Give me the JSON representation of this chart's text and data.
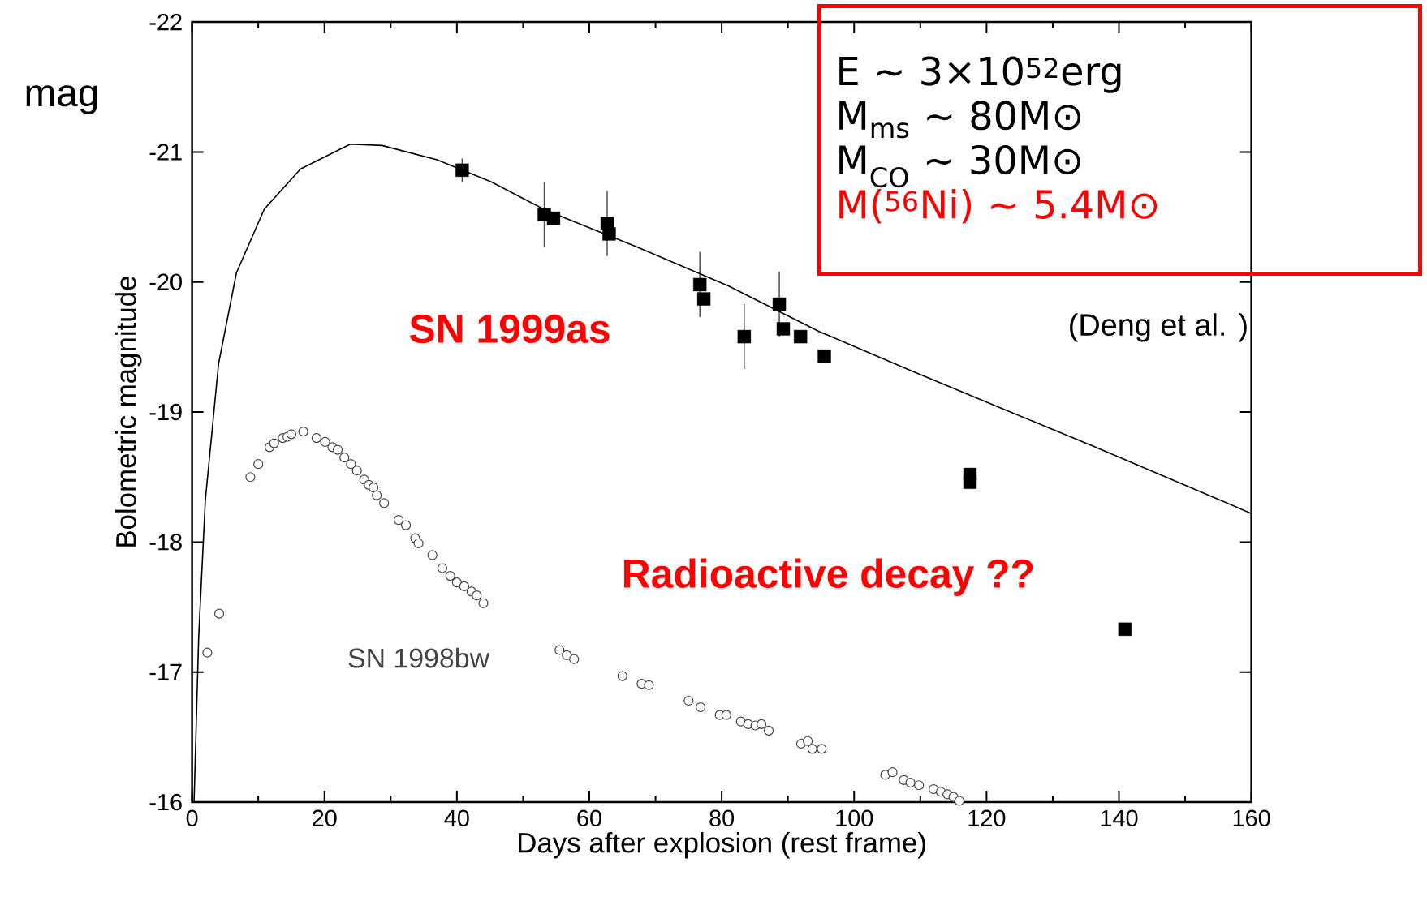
{
  "chart_data": {
    "type": "scatter",
    "xlabel": "Days after explosion (rest frame)",
    "ylabel": "Bolometric magnitude",
    "xlim": [
      0,
      160
    ],
    "xticks": [
      0,
      20,
      40,
      60,
      80,
      100,
      120,
      140,
      160
    ],
    "ylim": [
      -16,
      -22
    ],
    "yticks": [
      -22,
      -21,
      -20,
      -19,
      -18,
      -17,
      -16
    ],
    "series": [
      {
        "name": "SN 1999as",
        "marker": "square",
        "color": "#000000",
        "x": [
          40.8,
          53.2,
          54.6,
          62.7,
          63.0,
          76.7,
          77.3,
          83.4,
          88.7,
          89.3,
          91.9,
          95.5,
          117.5,
          117.5,
          140.9
        ],
        "values": [
          -20.86,
          -20.52,
          -20.49,
          -20.45,
          -20.37,
          -19.98,
          -19.87,
          -19.58,
          -19.83,
          -19.64,
          -19.58,
          -19.43,
          -18.52,
          -18.46,
          -17.33
        ],
        "errors": [
          0.09,
          0.25,
          null,
          0.25,
          null,
          0.25,
          null,
          0.25,
          0.25,
          null,
          null,
          null,
          null,
          null,
          null
        ]
      },
      {
        "name": "SN 1998bw",
        "marker": "circle",
        "color": "#444444",
        "x": [
          2.3,
          4.1,
          8.8,
          10.0,
          11.7,
          12.4,
          13.7,
          14.4,
          15.0,
          16.8,
          18.8,
          20.1,
          21.2,
          22.0,
          23.0,
          24.0,
          24.9,
          26.0,
          26.7,
          27.4,
          27.9,
          29.0,
          31.2,
          32.3,
          33.7,
          34.2,
          36.3,
          37.8,
          39.0,
          40.0,
          41.1,
          42.2,
          43.0,
          44.0,
          55.5,
          56.6,
          57.7,
          65.0,
          67.9,
          69.0,
          75.0,
          76.8,
          79.7,
          80.7,
          82.9,
          84.0,
          85.1,
          86.0,
          87.1,
          92.0,
          93.0,
          93.7,
          95.1,
          104.7,
          105.8,
          107.5,
          108.5,
          109.8,
          112.0,
          113.1,
          114.1,
          115.0,
          115.9
        ],
        "values": [
          -17.15,
          -17.45,
          -18.5,
          -18.6,
          -18.73,
          -18.76,
          -18.8,
          -18.81,
          -18.83,
          -18.85,
          -18.8,
          -18.77,
          -18.73,
          -18.71,
          -18.65,
          -18.6,
          -18.55,
          -18.48,
          -18.44,
          -18.42,
          -18.36,
          -18.3,
          -18.17,
          -18.13,
          -18.03,
          -17.99,
          -17.9,
          -17.8,
          -17.74,
          -17.69,
          -17.66,
          -17.62,
          -17.59,
          -17.53,
          -17.17,
          -17.13,
          -17.1,
          -16.97,
          -16.91,
          -16.9,
          -16.78,
          -16.73,
          -16.67,
          -16.67,
          -16.62,
          -16.6,
          -16.59,
          -16.6,
          -16.55,
          -16.45,
          -16.47,
          -16.41,
          -16.41,
          -16.21,
          -16.23,
          -16.17,
          -16.15,
          -16.13,
          -16.1,
          -16.08,
          -16.06,
          -16.04,
          -16.01
        ]
      },
      {
        "type": "line",
        "marker": "none",
        "line_style": "solid",
        "color": "#000000",
        "x": [
          0.3,
          1.0,
          2.0,
          4.0,
          6.7,
          10.9,
          16.4,
          23.9,
          28.7,
          37.0,
          45.2,
          53.5,
          67.2,
          81.0,
          94.7,
          108.5,
          122.2,
          136.0,
          160.0
        ],
        "values": [
          -16.0,
          -17.27,
          -18.32,
          -19.37,
          -20.07,
          -20.56,
          -20.87,
          -21.06,
          -21.05,
          -20.94,
          -20.77,
          -20.55,
          -20.27,
          -19.97,
          -19.62,
          -19.32,
          -19.03,
          -18.74,
          -18.22
        ]
      }
    ],
    "annotations": [
      "mag",
      "(Deng et al. )",
      "Radioactive decay ??",
      "E ~ 3×10$^{52}$erg",
      "M$_{ms}$ ~ 80M⊙",
      "M$_{CO}$ ~ 30M⊙",
      "M($^{56}$Ni) ~ 5.4M⊙"
    ]
  }
}
